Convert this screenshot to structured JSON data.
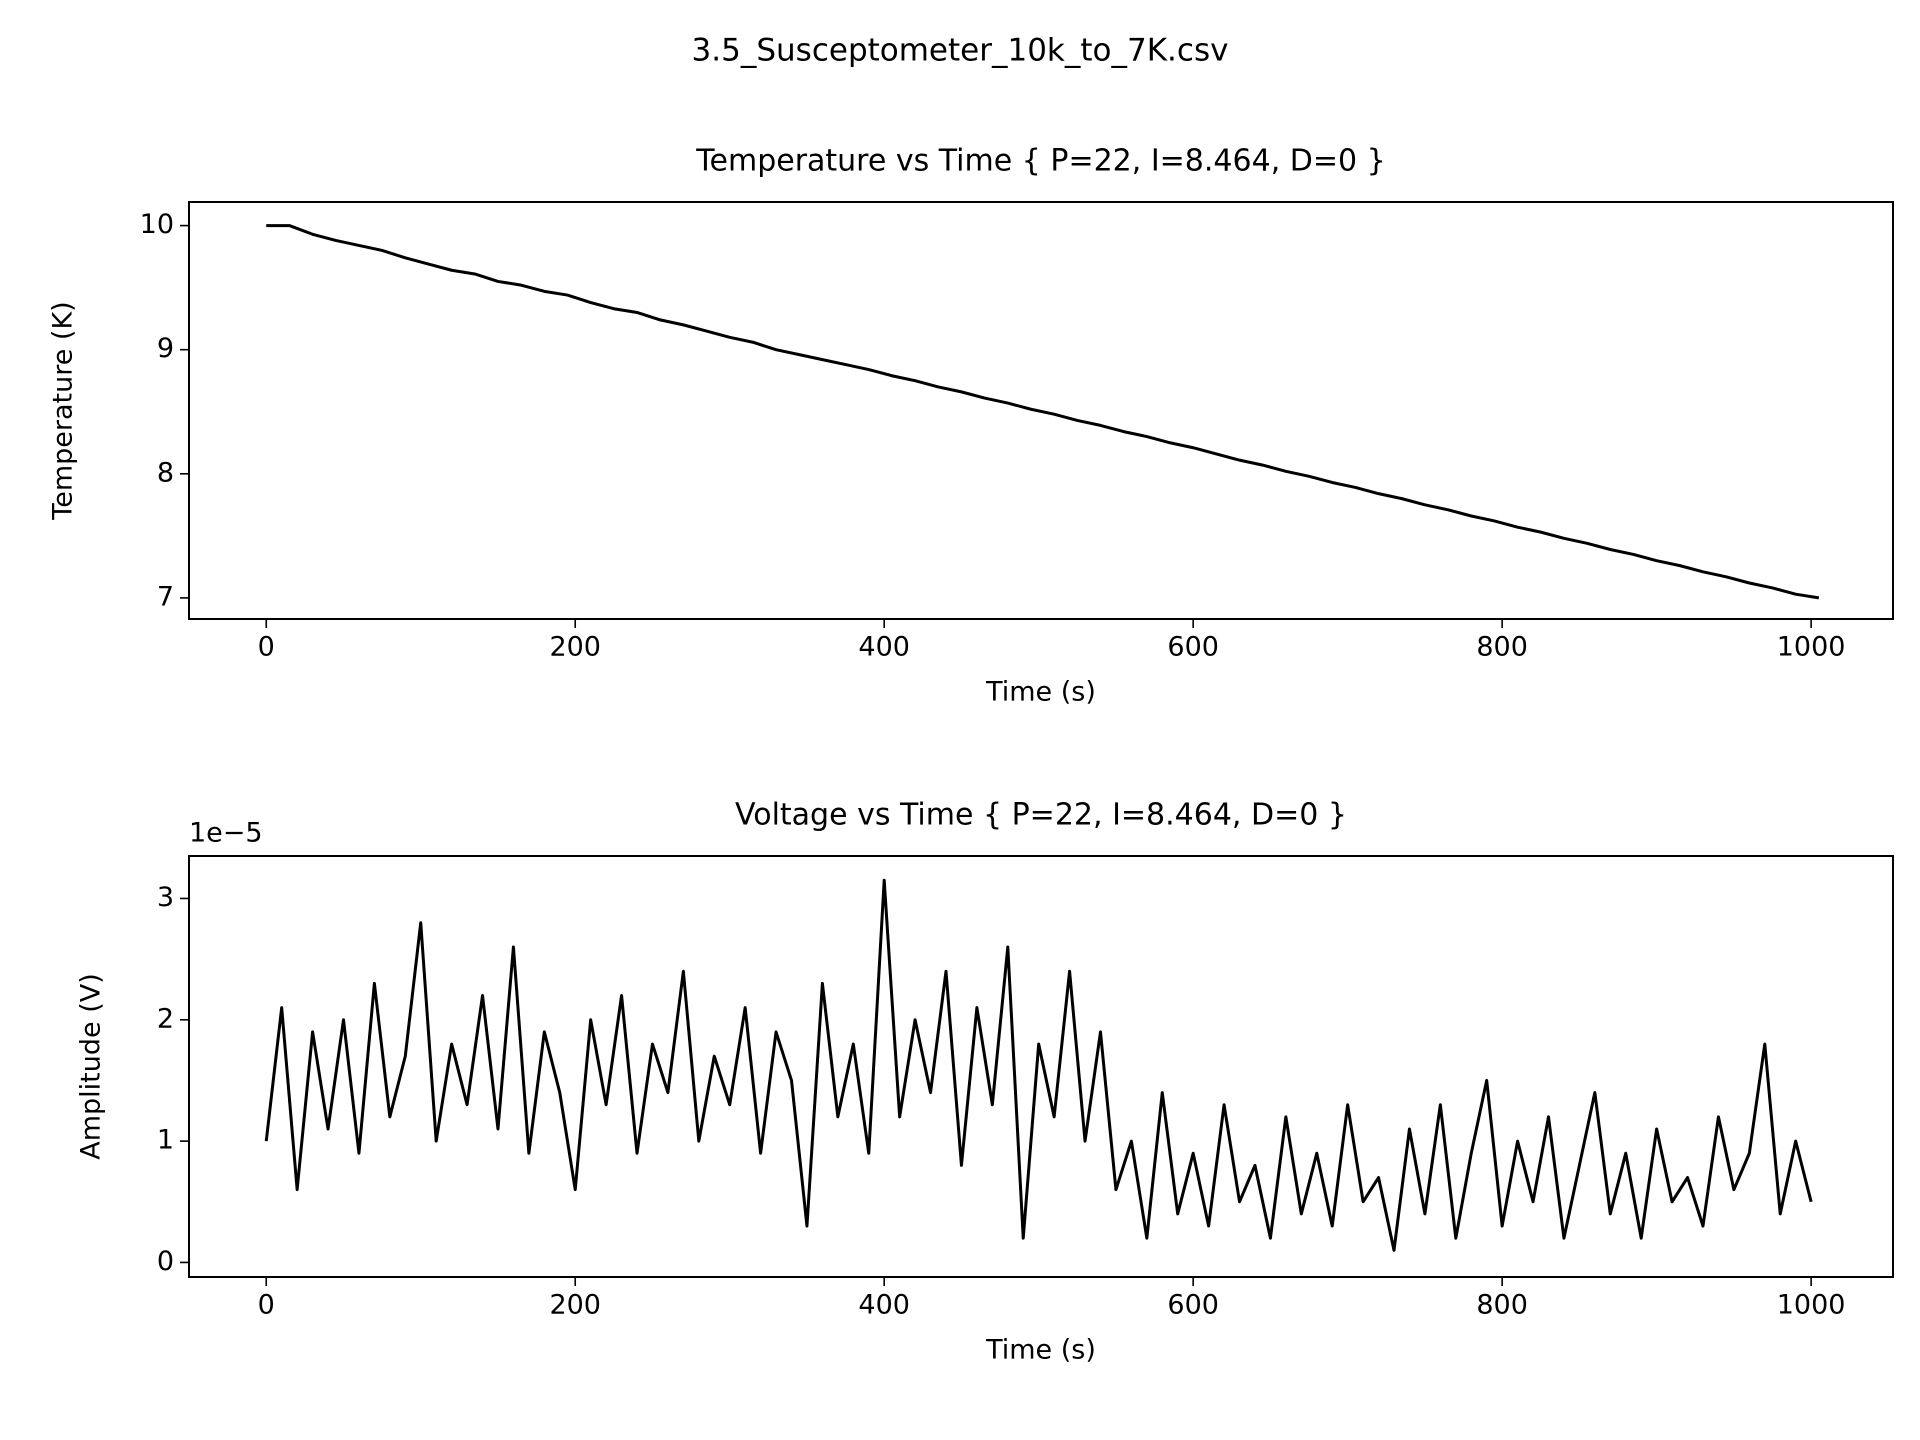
{
  "figure_title": "3.5_Susceptometer_10k_to_7K.csv",
  "chart_data": [
    {
      "type": "line",
      "title": "Temperature vs Time { P=22, I=8.464, D=0 }",
      "x_label": "Time (s)",
      "y_label": "Temperature (K)",
      "xlim": [
        -50,
        1053
      ],
      "xticks": [
        0,
        200,
        400,
        600,
        800,
        1000
      ],
      "ylim": [
        6.83,
        10.19
      ],
      "yticks": [
        7,
        8,
        9,
        10
      ],
      "x": [
        0,
        15,
        30,
        45,
        60,
        75,
        90,
        105,
        120,
        135,
        150,
        165,
        180,
        195,
        210,
        225,
        240,
        255,
        270,
        285,
        300,
        315,
        330,
        345,
        360,
        375,
        390,
        405,
        420,
        435,
        450,
        465,
        480,
        495,
        510,
        525,
        540,
        555,
        570,
        585,
        600,
        615,
        630,
        645,
        660,
        675,
        690,
        705,
        720,
        735,
        750,
        765,
        780,
        795,
        810,
        825,
        840,
        855,
        870,
        885,
        900,
        915,
        930,
        945,
        960,
        975,
        990,
        1005
      ],
      "series": [
        {
          "color": "#000000",
          "values": [
            10.0,
            10.0,
            9.93,
            9.88,
            9.84,
            9.8,
            9.74,
            9.69,
            9.64,
            9.61,
            9.55,
            9.52,
            9.47,
            9.44,
            9.38,
            9.33,
            9.3,
            9.24,
            9.2,
            9.15,
            9.1,
            9.06,
            9.0,
            8.96,
            8.92,
            8.88,
            8.84,
            8.79,
            8.75,
            8.7,
            8.66,
            8.61,
            8.57,
            8.52,
            8.48,
            8.43,
            8.39,
            8.34,
            8.3,
            8.25,
            8.21,
            8.16,
            8.11,
            8.07,
            8.02,
            7.98,
            7.93,
            7.89,
            7.84,
            7.8,
            7.75,
            7.71,
            7.66,
            7.62,
            7.57,
            7.53,
            7.48,
            7.44,
            7.39,
            7.35,
            7.3,
            7.26,
            7.21,
            7.17,
            7.12,
            7.08,
            7.03,
            7.0
          ]
        }
      ]
    },
    {
      "type": "line",
      "title": "Voltage vs Time { P=22, I=8.464, D=0 }",
      "x_label": "Time (s)",
      "y_label": "Amplitude (V)",
      "offset_text": "1e−5",
      "xlim": [
        -50,
        1053
      ],
      "xticks": [
        0,
        200,
        400,
        600,
        800,
        1000
      ],
      "ylim": [
        -0.12,
        3.35
      ],
      "yticks": [
        0,
        1,
        2,
        3
      ],
      "x": [
        0,
        10,
        20,
        30,
        40,
        50,
        60,
        70,
        80,
        90,
        100,
        110,
        120,
        130,
        140,
        150,
        160,
        170,
        180,
        190,
        200,
        210,
        220,
        230,
        240,
        250,
        260,
        270,
        280,
        290,
        300,
        310,
        320,
        330,
        340,
        350,
        360,
        370,
        380,
        390,
        400,
        410,
        420,
        430,
        440,
        450,
        460,
        470,
        480,
        490,
        500,
        510,
        520,
        530,
        540,
        550,
        560,
        570,
        580,
        590,
        600,
        610,
        620,
        630,
        640,
        650,
        660,
        670,
        680,
        690,
        700,
        710,
        720,
        730,
        740,
        750,
        760,
        770,
        780,
        790,
        800,
        810,
        820,
        830,
        840,
        850,
        860,
        870,
        880,
        890,
        900,
        910,
        920,
        930,
        940,
        950,
        960,
        970,
        980,
        990,
        1000
      ],
      "series": [
        {
          "color": "#000000",
          "values": [
            1.0,
            2.1,
            0.6,
            1.9,
            1.1,
            2.0,
            0.9,
            2.3,
            1.2,
            1.7,
            2.8,
            1.0,
            1.8,
            1.3,
            2.2,
            1.1,
            2.6,
            0.9,
            1.9,
            1.4,
            0.6,
            2.0,
            1.3,
            2.2,
            0.9,
            1.8,
            1.4,
            2.4,
            1.0,
            1.7,
            1.3,
            2.1,
            0.9,
            1.9,
            1.5,
            0.3,
            2.3,
            1.2,
            1.8,
            0.9,
            3.15,
            1.2,
            2.0,
            1.4,
            2.4,
            0.8,
            2.1,
            1.3,
            2.6,
            0.2,
            1.8,
            1.2,
            2.4,
            1.0,
            1.9,
            0.6,
            1.0,
            0.2,
            1.4,
            0.4,
            0.9,
            0.3,
            1.3,
            0.5,
            0.8,
            0.2,
            1.2,
            0.4,
            0.9,
            0.3,
            1.3,
            0.5,
            0.7,
            0.1,
            1.1,
            0.4,
            1.3,
            0.2,
            0.9,
            1.5,
            0.3,
            1.0,
            0.5,
            1.2,
            0.2,
            0.8,
            1.4,
            0.4,
            0.9,
            0.2,
            1.1,
            0.5,
            0.7,
            0.3,
            1.2,
            0.6,
            0.9,
            1.8,
            0.4,
            1.0,
            0.5
          ]
        }
      ]
    }
  ]
}
